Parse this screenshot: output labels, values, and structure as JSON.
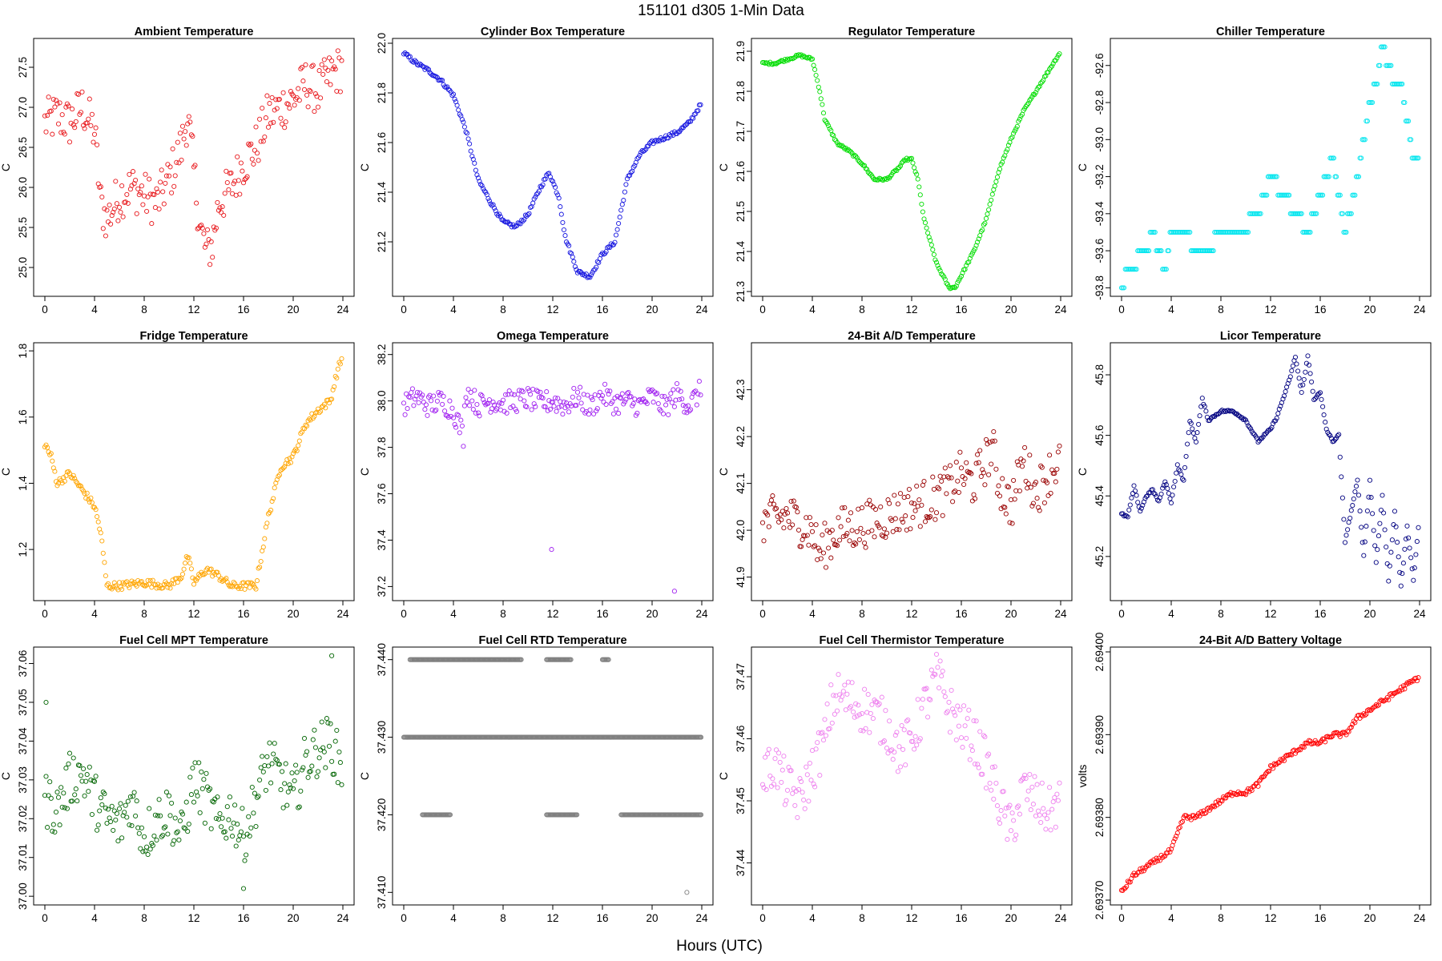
{
  "figure": {
    "title": "151101    d305    1-Min Data",
    "xlabel": "Hours (UTC)"
  },
  "chart_data": [
    {
      "type": "scatter",
      "title": "Ambient Temperature",
      "ylabel": "C",
      "color": "#e8181c",
      "xlim": [
        0,
        24
      ],
      "xticks": [
        0,
        4,
        8,
        12,
        16,
        20,
        24
      ],
      "ylim": [
        24.7,
        27.8
      ],
      "yticks": [
        "25.0",
        "25.5",
        "26.0",
        "26.5",
        "27.0",
        "27.5"
      ],
      "x": [
        0,
        1,
        2,
        3,
        4,
        4.5,
        5,
        6,
        7,
        8,
        9,
        10,
        11,
        11.5,
        12,
        12.5,
        13,
        13.5,
        14,
        15,
        16,
        17,
        17.5,
        18,
        19,
        20,
        21,
        22,
        23,
        24
      ],
      "y": [
        26.8,
        26.9,
        26.8,
        27.0,
        26.7,
        25.8,
        25.6,
        25.9,
        26.0,
        25.9,
        25.8,
        26.1,
        26.5,
        26.9,
        26.2,
        25.5,
        25.2,
        25.3,
        25.8,
        26.0,
        26.3,
        26.5,
        26.7,
        26.9,
        27.0,
        27.1,
        27.3,
        27.2,
        27.4,
        27.5
      ],
      "spread": 0.3,
      "density": 10
    },
    {
      "type": "scatter",
      "title": "Cylinder Box Temperature",
      "ylabel": "C",
      "color": "#1515e0",
      "xlim": [
        0,
        24
      ],
      "xticks": [
        0,
        4,
        8,
        12,
        16,
        20,
        24
      ],
      "ylim": [
        21.0,
        22.0
      ],
      "yticks": [
        "21.2",
        "21.4",
        "21.6",
        "21.8",
        "22.0"
      ],
      "x": [
        0,
        1,
        2,
        3,
        4,
        5,
        6,
        7,
        8,
        9,
        10,
        11,
        11.7,
        12.5,
        13,
        14,
        15,
        16,
        17,
        18,
        19,
        20,
        21,
        22,
        23,
        23.5,
        24
      ],
      "y": [
        21.96,
        21.92,
        21.89,
        21.85,
        21.79,
        21.65,
        21.45,
        21.36,
        21.28,
        21.26,
        21.31,
        21.42,
        21.48,
        21.38,
        21.22,
        21.08,
        21.06,
        21.15,
        21.2,
        21.45,
        21.55,
        21.6,
        21.62,
        21.64,
        21.68,
        21.72,
        21.76
      ],
      "spread": 0.008,
      "density": 10
    },
    {
      "type": "scatter",
      "title": "Regulator Temperature",
      "ylabel": "C",
      "color": "#00dd00",
      "xlim": [
        0,
        24
      ],
      "xticks": [
        0,
        4,
        8,
        12,
        16,
        20,
        24
      ],
      "ylim": [
        21.3,
        21.92
      ],
      "yticks": [
        "21.3",
        "21.4",
        "21.5",
        "21.6",
        "21.7",
        "21.8",
        "21.9"
      ],
      "x": [
        0,
        1,
        2,
        3,
        4,
        4.6,
        5,
        6,
        7,
        8,
        9,
        10,
        11,
        11.5,
        12,
        12.5,
        13,
        14,
        15,
        15.5,
        16,
        17,
        18,
        19,
        20,
        21,
        22,
        23,
        24
      ],
      "y": [
        21.87,
        21.87,
        21.88,
        21.89,
        21.88,
        21.8,
        21.73,
        21.67,
        21.65,
        21.62,
        21.58,
        21.58,
        21.61,
        21.63,
        21.63,
        21.58,
        21.48,
        21.37,
        21.31,
        21.31,
        21.34,
        21.4,
        21.48,
        21.6,
        21.68,
        21.75,
        21.8,
        21.85,
        21.9
      ],
      "spread": 0.003,
      "density": 10
    },
    {
      "type": "scatter",
      "title": "Chiller Temperature",
      "ylabel": "C",
      "color": "#00e5ee",
      "xlim": [
        0,
        24
      ],
      "xticks": [
        0,
        4,
        8,
        12,
        16,
        20,
        24
      ],
      "ylim": [
        -93.82,
        -92.48
      ],
      "yticks": [
        "-93.8",
        "-93.6",
        "-93.4",
        "-93.2",
        "-93.0",
        "-92.8",
        "-92.6"
      ],
      "x": [
        0,
        0.5,
        1,
        1.5,
        2,
        2.5,
        3,
        3.5,
        4,
        5,
        6,
        7,
        8,
        9,
        10,
        10.5,
        11,
        11.5,
        12,
        13,
        14,
        15,
        16,
        17,
        18,
        19,
        19.5,
        20,
        20.5,
        21,
        21.5,
        22,
        22.5,
        23,
        23.5,
        24
      ],
      "y": [
        -93.8,
        -93.7,
        -93.7,
        -93.6,
        -93.6,
        -93.5,
        -93.6,
        -93.7,
        -93.5,
        -93.5,
        -93.6,
        -93.6,
        -93.5,
        -93.5,
        -93.5,
        -93.4,
        -93.4,
        -93.3,
        -93.2,
        -93.3,
        -93.4,
        -93.5,
        -93.3,
        -93.1,
        -93.5,
        -93.2,
        -93.0,
        -92.8,
        -92.7,
        -92.5,
        -92.6,
        -92.7,
        -92.7,
        -92.9,
        -93.1,
        -93.1
      ],
      "spread": 0.0,
      "density": 10
    },
    {
      "type": "scatter",
      "title": "Fridge Temperature",
      "ylabel": "C",
      "color": "#ffa500",
      "xlim": [
        0,
        24
      ],
      "xticks": [
        0,
        4,
        8,
        12,
        16,
        20,
        24
      ],
      "ylim": [
        1.06,
        1.81
      ],
      "yticks": [
        "1.2",
        "1.4",
        "1.6",
        "1.8"
      ],
      "x": [
        0,
        0.5,
        1,
        2,
        3,
        4,
        4.5,
        5,
        6,
        8,
        10,
        11,
        11.5,
        12,
        13,
        14,
        15,
        16,
        17,
        18,
        19,
        20,
        21,
        22,
        23,
        23.5,
        24
      ],
      "y": [
        1.52,
        1.48,
        1.4,
        1.43,
        1.38,
        1.33,
        1.25,
        1.09,
        1.09,
        1.1,
        1.09,
        1.12,
        1.18,
        1.1,
        1.14,
        1.12,
        1.09,
        1.09,
        1.09,
        1.3,
        1.45,
        1.48,
        1.58,
        1.62,
        1.65,
        1.73,
        1.79
      ],
      "spread": 0.012,
      "density": 10
    },
    {
      "type": "scatter",
      "title": "Omega Temperature",
      "ylabel": "C",
      "color": "#a020f0",
      "xlim": [
        0,
        24
      ],
      "xticks": [
        0,
        4,
        8,
        12,
        16,
        20,
        24
      ],
      "ylim": [
        37.16,
        38.23
      ],
      "yticks": [
        "37.2",
        "37.4",
        "37.6",
        "37.8",
        "38.0",
        "38.2"
      ],
      "x": [
        0,
        1,
        2,
        3,
        4,
        4.8,
        5,
        6,
        7,
        8,
        9,
        10,
        11,
        12,
        13,
        14,
        15,
        16,
        17,
        18,
        19,
        20,
        21,
        22,
        23,
        24
      ],
      "y": [
        37.98,
        38.02,
        37.98,
        38.0,
        37.96,
        37.85,
        38.05,
        37.98,
        38.0,
        37.99,
        38.0,
        38.01,
        37.99,
        38.0,
        37.98,
        38.02,
        37.97,
        38.03,
        37.99,
        38.0,
        37.98,
        38.02,
        37.97,
        38.03,
        37.98,
        38.05
      ],
      "spread": 0.05,
      "density": 10,
      "outliers_x": [
        11.9,
        21.8
      ],
      "outliers_y": [
        37.36,
        37.18
      ]
    },
    {
      "type": "scatter",
      "title": "24-Bit A/D Temperature",
      "ylabel": "C",
      "color": "#990000",
      "xlim": [
        0,
        24
      ],
      "xticks": [
        0,
        4,
        8,
        12,
        16,
        20,
        24
      ],
      "ylim": [
        41.86,
        42.39
      ],
      "yticks": [
        "41.9",
        "42.0",
        "42.1",
        "42.2",
        "42.3"
      ],
      "x": [
        0,
        2,
        4,
        4.5,
        6,
        8,
        10,
        12,
        14,
        15,
        16,
        17,
        18,
        18.5,
        19,
        20,
        21,
        22,
        23,
        24
      ],
      "y": [
        42.02,
        42.03,
        42.0,
        41.95,
        42.0,
        42.01,
        42.03,
        42.05,
        42.07,
        42.09,
        42.12,
        42.1,
        42.15,
        42.18,
        42.1,
        42.05,
        42.15,
        42.08,
        42.12,
        42.15
      ],
      "spread": 0.05,
      "density": 10
    },
    {
      "type": "scatter",
      "title": "Licor Temperature",
      "ylabel": "C",
      "color": "#000080",
      "xlim": [
        0,
        24
      ],
      "xticks": [
        0,
        4,
        8,
        12,
        16,
        20,
        24
      ],
      "ylim": [
        45.07,
        45.89
      ],
      "yticks": [
        "45.2",
        "45.4",
        "45.6",
        "45.8"
      ],
      "x": [
        0,
        0.5,
        1,
        1.5,
        2,
        2.5,
        3,
        3.5,
        4,
        4.5,
        5,
        5.5,
        6,
        6.5,
        7,
        8,
        9,
        10,
        11,
        12,
        12.5,
        13,
        13.5,
        14,
        14.5,
        15,
        15.5,
        16,
        16.5,
        17,
        17.5,
        18,
        18.5,
        19,
        19.5,
        20,
        20.5,
        21,
        21.5,
        22,
        22.5,
        23,
        23.5,
        24
      ],
      "y": [
        45.34,
        45.33,
        45.43,
        45.35,
        45.4,
        45.42,
        45.38,
        45.45,
        45.38,
        45.5,
        45.45,
        45.65,
        45.58,
        45.72,
        45.65,
        45.68,
        45.68,
        45.65,
        45.58,
        45.62,
        45.66,
        45.72,
        45.78,
        45.86,
        45.74,
        45.86,
        45.72,
        45.74,
        45.62,
        45.58,
        45.6,
        45.25,
        45.35,
        45.45,
        45.2,
        45.45,
        45.18,
        45.4,
        45.12,
        45.35,
        45.1,
        45.3,
        45.12,
        45.34
      ],
      "spread": 0.004,
      "density": 10
    },
    {
      "type": "scatter",
      "title": "Fuel Cell MPT Temperature",
      "ylabel": "C",
      "color": "#006400",
      "xlim": [
        0,
        24
      ],
      "xticks": [
        0,
        4,
        8,
        12,
        16,
        20,
        24
      ],
      "ylim": [
        36.999,
        37.063
      ],
      "yticks": [
        "37.00",
        "37.01",
        "37.02",
        "37.03",
        "37.04",
        "37.05",
        "37.06"
      ],
      "x": [
        0,
        1,
        2,
        3,
        4,
        5,
        6,
        7,
        8,
        9,
        10,
        11,
        12,
        13,
        14,
        15,
        16,
        17,
        18,
        19,
        20,
        21,
        22,
        23,
        24
      ],
      "y": [
        37.025,
        37.022,
        37.03,
        37.032,
        37.025,
        37.02,
        37.018,
        37.025,
        37.015,
        37.02,
        37.022,
        37.015,
        37.03,
        37.025,
        37.018,
        37.022,
        37.015,
        37.025,
        37.035,
        37.03,
        37.025,
        37.035,
        37.038,
        37.04,
        37.032
      ],
      "spread": 0.007,
      "density": 10,
      "outliers_x": [
        0.1,
        23.1,
        16
      ],
      "outliers_y": [
        37.05,
        37.062,
        37.002
      ]
    },
    {
      "type": "scatter",
      "title": "Fuel Cell RTD Temperature",
      "ylabel": "C",
      "color": "#808080",
      "xlim": [
        0,
        24
      ],
      "xticks": [
        0,
        4,
        8,
        12,
        16,
        20,
        24
      ],
      "ylim": [
        37.409,
        37.441
      ],
      "yticks": [
        "37.410",
        "37.420",
        "37.430",
        "37.440"
      ],
      "levels": [
        37.42,
        37.43,
        37.44
      ],
      "level_ranges": [
        [
          [
            1.5,
            3.8
          ],
          [
            11.5,
            14
          ],
          [
            17.5,
            24
          ]
        ],
        [
          [
            0,
            24
          ]
        ],
        [
          [
            0.5,
            9.5
          ],
          [
            11.5,
            13.5
          ],
          [
            16,
            16.5
          ]
        ]
      ],
      "outliers_x": [
        22.8
      ],
      "outliers_y": [
        37.41
      ]
    },
    {
      "type": "scatter",
      "title": "Fuel Cell Thermistor Temperature",
      "ylabel": "C",
      "color": "#ee82ee",
      "xlim": [
        0,
        24
      ],
      "xticks": [
        0,
        4,
        8,
        12,
        16,
        20,
        24
      ],
      "ylim": [
        37.434,
        37.474
      ],
      "yticks": [
        "37.44",
        "37.45",
        "37.46",
        "37.47"
      ],
      "x": [
        0,
        1,
        2,
        3,
        4,
        5,
        5.5,
        6,
        7,
        8,
        9,
        10,
        11,
        12,
        13,
        14,
        14.5,
        15,
        16,
        17,
        18,
        19,
        20,
        21,
        22,
        23,
        24
      ],
      "y": [
        37.454,
        37.456,
        37.452,
        37.45,
        37.455,
        37.46,
        37.465,
        37.467,
        37.466,
        37.465,
        37.464,
        37.462,
        37.458,
        37.46,
        37.465,
        37.47,
        37.468,
        37.465,
        37.462,
        37.46,
        37.456,
        37.45,
        37.445,
        37.452,
        37.45,
        37.448,
        37.45
      ],
      "spread": 0.004,
      "density": 10
    },
    {
      "type": "scatter",
      "title": "24-Bit A/D Battery Voltage",
      "ylabel": "volts",
      "color": "#ff0000",
      "xlim": [
        0,
        24
      ],
      "xticks": [
        0,
        4,
        8,
        12,
        16,
        20,
        24
      ],
      "ylim": [
        2.6937,
        2.694
      ],
      "yticks": [
        "2.69370",
        "2.69380",
        "2.69390",
        "2.69400"
      ],
      "x": [
        0,
        1,
        2,
        3,
        4,
        4.5,
        5,
        6,
        7,
        8,
        9,
        10,
        11,
        12,
        13,
        14,
        15,
        16,
        17,
        18,
        19,
        20,
        21,
        22,
        23,
        24
      ],
      "y": [
        2.69371,
        2.69373,
        2.69374,
        2.69375,
        2.69376,
        2.69378,
        2.6938,
        2.6938,
        2.69381,
        2.69382,
        2.69383,
        2.69383,
        2.69384,
        2.69386,
        2.69387,
        2.69388,
        2.69389,
        2.69389,
        2.6939,
        2.6939,
        2.69392,
        2.69393,
        2.69394,
        2.69395,
        2.69396,
        2.69397
      ],
      "spread": 3e-06,
      "density": 10
    }
  ]
}
